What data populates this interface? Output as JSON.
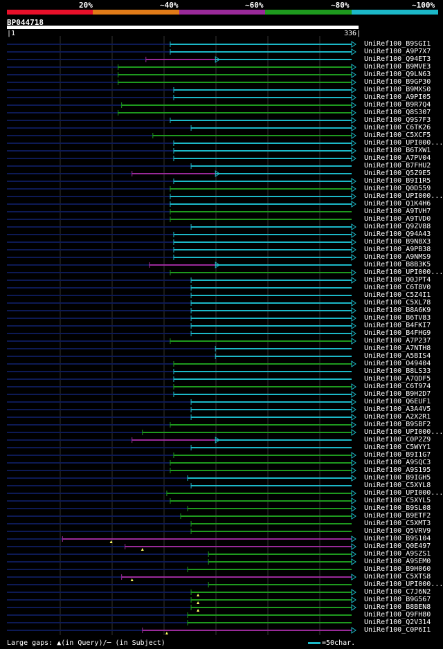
{
  "legend": {
    "colors": [
      "#e8102a",
      "#e07b18",
      "#9a2a9a",
      "#1e9a1e",
      "#1cb8c8"
    ],
    "labels": [
      "20%",
      "~40%",
      "~60%",
      "~80%",
      "~100%"
    ]
  },
  "query": {
    "id": "BP044718",
    "start": "1",
    "end": "336"
  },
  "series_colors": {
    "c": "#1cb8c8",
    "g": "#1e9a1e",
    "m": "#9a2a9a",
    "bg": "#0d1a55"
  },
  "hits": [
    {
      "label": "UniRef100_B9SGI1",
      "color": "c",
      "start": 0.47,
      "arrow": true
    },
    {
      "label": "UniRef100_A9P7X7",
      "color": "c",
      "start": 0.47,
      "arrow": true
    },
    {
      "label": "UniRef100_Q94ET3",
      "color": "m",
      "start": 0.4,
      "end": 0.6,
      "arrow": true
    },
    {
      "label": "UniRef100_B9MVE3",
      "color": "g",
      "start": 0.32,
      "arrow": true
    },
    {
      "label": "UniRef100_Q9LN63",
      "color": "g",
      "start": 0.32,
      "arrow": true
    },
    {
      "label": "UniRef100_B9GP30",
      "color": "g",
      "start": 0.32,
      "arrow": true
    },
    {
      "label": "UniRef100_B9MXS0",
      "color": "c",
      "start": 0.48,
      "arrow": true
    },
    {
      "label": "UniRef100_A9PI05",
      "color": "c",
      "start": 0.48,
      "arrow": true
    },
    {
      "label": "UniRef100_B9R7Q4",
      "color": "g",
      "start": 0.33,
      "arrow": true
    },
    {
      "label": "UniRef100_Q8S307",
      "color": "g",
      "start": 0.32,
      "arrow": true
    },
    {
      "label": "UniRef100_Q9S7F3",
      "color": "c",
      "start": 0.47,
      "arrow": true
    },
    {
      "label": "UniRef100_C6TK26",
      "color": "c",
      "start": 0.53,
      "arrow": true
    },
    {
      "label": "UniRef100_C5XCF5",
      "color": "g",
      "start": 0.42,
      "arrow": true
    },
    {
      "label": "UniRef100_UPI000...",
      "color": "c",
      "start": 0.48,
      "arrow": true
    },
    {
      "label": "UniRef100_B6TXW1",
      "color": "c",
      "start": 0.48,
      "arrow": true
    },
    {
      "label": "UniRef100_A7PV04",
      "color": "c",
      "start": 0.48,
      "arrow": true
    },
    {
      "label": "UniRef100_B7FHU2",
      "color": "c",
      "start": 0.53,
      "arrow": false
    },
    {
      "label": "UniRef100_Q5Z9E5",
      "color": "m",
      "start": 0.36,
      "end": 0.6,
      "arrow": true
    },
    {
      "label": "UniRef100_B9I1R5",
      "color": "c",
      "start": 0.48,
      "arrow": true
    },
    {
      "label": "UniRef100_Q0D559",
      "color": "g",
      "start": 0.47,
      "arrow": true
    },
    {
      "label": "UniRef100_UPI000...",
      "color": "c",
      "start": 0.47,
      "arrow": true
    },
    {
      "label": "UniRef100_Q1K4H6",
      "color": "c",
      "start": 0.47,
      "arrow": true
    },
    {
      "label": "UniRef100_A9TVH7",
      "color": "g",
      "start": 0.47,
      "arrow": false
    },
    {
      "label": "UniRef100_A9TVD0",
      "color": "g",
      "start": 0.47,
      "arrow": false
    },
    {
      "label": "UniRef100_Q9ZV88",
      "color": "c",
      "start": 0.53,
      "arrow": true
    },
    {
      "label": "UniRef100_Q94A43",
      "color": "c",
      "start": 0.48,
      "arrow": true
    },
    {
      "label": "UniRef100_B9N8X3",
      "color": "c",
      "start": 0.48,
      "arrow": true
    },
    {
      "label": "UniRef100_A9PB38",
      "color": "c",
      "start": 0.48,
      "arrow": true
    },
    {
      "label": "UniRef100_A9NMS9",
      "color": "c",
      "start": 0.48,
      "arrow": true
    },
    {
      "label": "UniRef100_B8B3K5",
      "color": "m",
      "start": 0.41,
      "end": 0.6,
      "arrow": true
    },
    {
      "label": "UniRef100_UPI000...",
      "color": "g",
      "start": 0.47,
      "arrow": true
    },
    {
      "label": "UniRef100_Q0JPT4",
      "color": "c",
      "start": 0.53,
      "arrow": true
    },
    {
      "label": "UniRef100_C6T8V0",
      "color": "c",
      "start": 0.53,
      "arrow": false
    },
    {
      "label": "UniRef100_C5Z4I1",
      "color": "c",
      "start": 0.53,
      "arrow": false
    },
    {
      "label": "UniRef100_C5XL78",
      "color": "c",
      "start": 0.53,
      "arrow": true
    },
    {
      "label": "UniRef100_B8A6K9",
      "color": "c",
      "start": 0.53,
      "arrow": true
    },
    {
      "label": "UniRef100_B6TV83",
      "color": "c",
      "start": 0.53,
      "arrow": true
    },
    {
      "label": "UniRef100_B4FKI7",
      "color": "c",
      "start": 0.53,
      "arrow": true
    },
    {
      "label": "UniRef100_B4FHG9",
      "color": "c",
      "start": 0.53,
      "arrow": true
    },
    {
      "label": "UniRef100_A7P237",
      "color": "g",
      "start": 0.47,
      "arrow": true
    },
    {
      "label": "UniRef100_A7NTH8",
      "color": "c",
      "start": 0.6,
      "arrow": false
    },
    {
      "label": "UniRef100_A5BIS4",
      "color": "c",
      "start": 0.6,
      "arrow": false
    },
    {
      "label": "UniRef100_O49404",
      "color": "g",
      "start": 0.48,
      "arrow": true
    },
    {
      "label": "UniRef100_B8LS33",
      "color": "c",
      "start": 0.48,
      "arrow": false
    },
    {
      "label": "UniRef100_A7QDF5",
      "color": "c",
      "start": 0.48,
      "arrow": false
    },
    {
      "label": "UniRef100_C6T974",
      "color": "g",
      "start": 0.48,
      "arrow": true
    },
    {
      "label": "UniRef100_B9H2D7",
      "color": "c",
      "start": 0.48,
      "arrow": true
    },
    {
      "label": "UniRef100_Q6EUF1",
      "color": "c",
      "start": 0.53,
      "arrow": true
    },
    {
      "label": "UniRef100_A3A4V5",
      "color": "c",
      "start": 0.53,
      "arrow": true
    },
    {
      "label": "UniRef100_A2X2R1",
      "color": "c",
      "start": 0.53,
      "arrow": true
    },
    {
      "label": "UniRef100_B9SBF2",
      "color": "g",
      "start": 0.47,
      "arrow": true
    },
    {
      "label": "UniRef100_UPI000...",
      "color": "g",
      "start": 0.39,
      "arrow": true
    },
    {
      "label": "UniRef100_C0P2Z9",
      "color": "m",
      "start": 0.36,
      "end": 0.6,
      "arrow": true
    },
    {
      "label": "UniRef100_C5WYY1",
      "color": "c",
      "start": 0.53,
      "arrow": false
    },
    {
      "label": "UniRef100_B9I1G7",
      "color": "g",
      "start": 0.48,
      "arrow": true
    },
    {
      "label": "UniRef100_A9SQC3",
      "color": "g",
      "start": 0.47,
      "arrow": true
    },
    {
      "label": "UniRef100_A9S195",
      "color": "g",
      "start": 0.47,
      "arrow": true
    },
    {
      "label": "UniRef100_B9IGH5",
      "color": "c",
      "start": 0.52,
      "arrow": true
    },
    {
      "label": "UniRef100_C5XYL8",
      "color": "c",
      "start": 0.53,
      "arrow": false
    },
    {
      "label": "UniRef100_UPI000...",
      "color": "g",
      "start": 0.46,
      "arrow": true
    },
    {
      "label": "UniRef100_C5XYL5",
      "color": "g",
      "start": 0.47,
      "arrow": true
    },
    {
      "label": "UniRef100_B9SL08",
      "color": "g",
      "start": 0.52,
      "arrow": true
    },
    {
      "label": "UniRef100_B9ETF2",
      "color": "g",
      "start": 0.5,
      "arrow": true
    },
    {
      "label": "UniRef100_C5XMT3",
      "color": "g",
      "start": 0.53,
      "arrow": false
    },
    {
      "label": "UniRef100_Q5VRV9",
      "color": "g",
      "start": 0.53,
      "arrow": false
    },
    {
      "label": "UniRef100_B9S104",
      "color": "m",
      "start": 0.16,
      "arrow": true,
      "gap": 0.3
    },
    {
      "label": "UniRef100_Q0E497",
      "color": "m",
      "start": 0.34,
      "arrow": true,
      "gap": 0.39
    },
    {
      "label": "UniRef100_A9SZS1",
      "color": "g",
      "start": 0.58,
      "arrow": true
    },
    {
      "label": "UniRef100_A9SEM0",
      "color": "g",
      "start": 0.58,
      "arrow": true
    },
    {
      "label": "UniRef100_B9H060",
      "color": "g",
      "start": 0.52,
      "arrow": false
    },
    {
      "label": "UniRef100_C5XTS8",
      "color": "m",
      "start": 0.33,
      "arrow": true,
      "gap": 0.36
    },
    {
      "label": "UniRef100_UPI000...",
      "color": "g",
      "start": 0.58,
      "arrow": false
    },
    {
      "label": "UniRef100_C7J6N2",
      "color": "g",
      "start": 0.53,
      "arrow": true,
      "gap": 0.55
    },
    {
      "label": "UniRef100_B9G567",
      "color": "g",
      "start": 0.53,
      "arrow": true,
      "gap": 0.55
    },
    {
      "label": "UniRef100_B8BEN8",
      "color": "g",
      "start": 0.53,
      "arrow": true,
      "gap": 0.55
    },
    {
      "label": "UniRef100_Q9FH80",
      "color": "g",
      "start": 0.52,
      "arrow": false
    },
    {
      "label": "UniRef100_Q2V314",
      "color": "g",
      "start": 0.52,
      "arrow": false
    },
    {
      "label": "UniRef100_C0P6I1",
      "color": "m",
      "start": 0.39,
      "arrow": true,
      "gap": 0.46
    }
  ],
  "footer": {
    "gaps_text": "Large gaps: ▲(in Query)/─ (in Subject)",
    "scale_text": "=50char."
  }
}
